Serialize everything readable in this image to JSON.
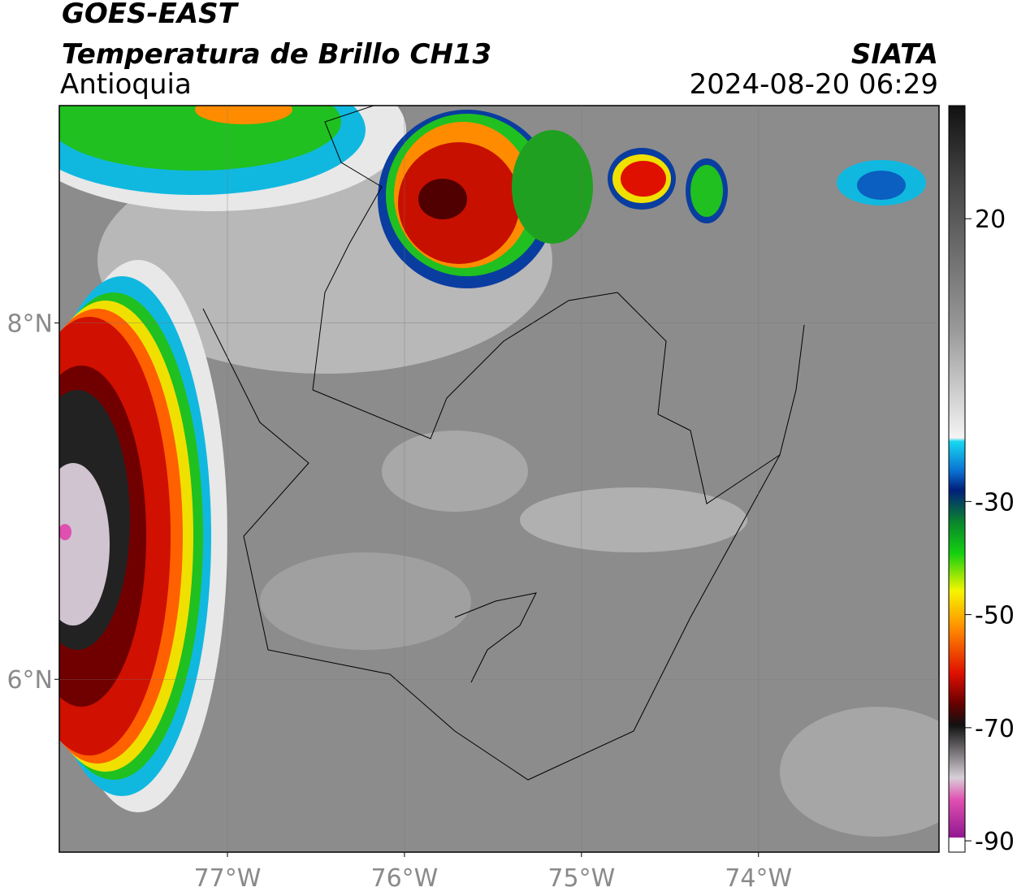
{
  "header": {
    "title": "GOES-EAST",
    "subtitle": "Temperatura de Brillo CH13",
    "region": "Antioquia",
    "source": "SIATA",
    "datetime": "2024-08-20 06:29"
  },
  "map": {
    "xlim": [
      -77.95,
      -72.98
    ],
    "ylim": [
      5.03,
      9.22
    ],
    "xticks": [
      {
        "value": -77,
        "label": "77°W"
      },
      {
        "value": -76,
        "label": "76°W"
      },
      {
        "value": -75,
        "label": "75°W"
      },
      {
        "value": -74,
        "label": "74°W"
      }
    ],
    "yticks": [
      {
        "value": 8,
        "label": "8°N"
      },
      {
        "value": 6,
        "label": "6°N"
      }
    ]
  },
  "colorbar": {
    "lim": [
      -92,
      40
    ],
    "ticks": [
      20,
      -30,
      -50,
      -70,
      -90
    ]
  }
}
